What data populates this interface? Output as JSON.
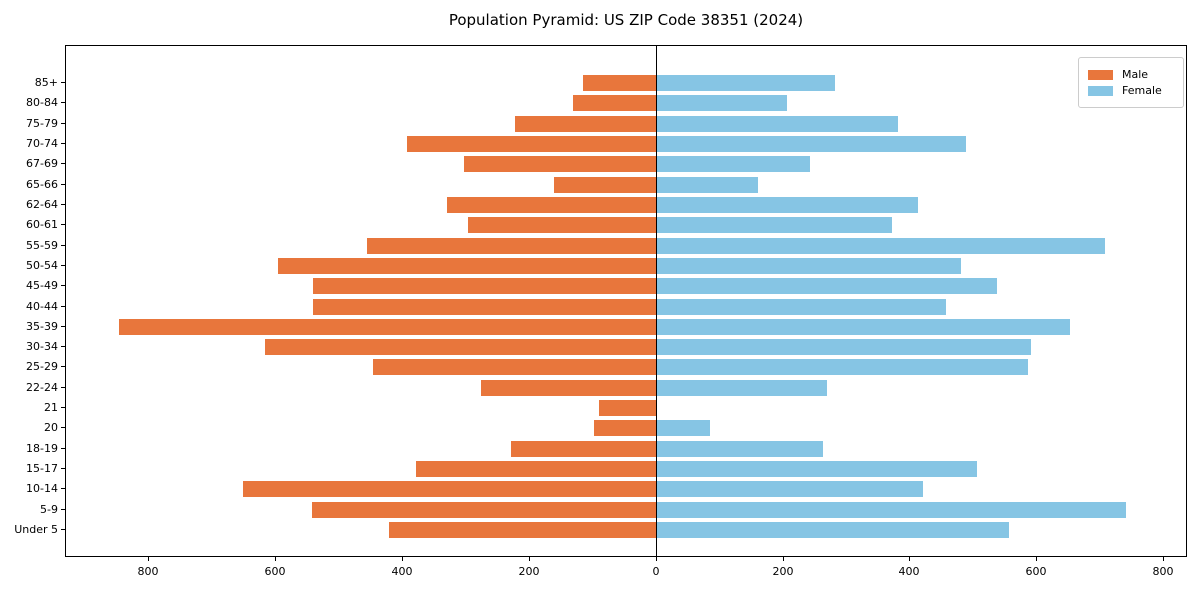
{
  "title": "Population Pyramid: US ZIP Code 38351 (2024)",
  "legend": {
    "items": [
      {
        "label": "Male",
        "color": "#e8763c"
      },
      {
        "label": "Female",
        "color": "#86c5e4"
      }
    ]
  },
  "chart_data": {
    "type": "bar",
    "subtype": "population-pyramid",
    "title": "Population Pyramid: US ZIP Code 38351 (2024)",
    "xlabel": "",
    "ylabel": "",
    "grid": false,
    "legend_position": "upper-right",
    "categories_top_to_bottom": [
      "85+",
      "80-84",
      "75-79",
      "70-74",
      "67-69",
      "65-66",
      "62-64",
      "60-61",
      "55-59",
      "50-54",
      "45-49",
      "40-44",
      "35-39",
      "30-34",
      "25-29",
      "22-24",
      "21",
      "20",
      "18-19",
      "15-17",
      "10-14",
      "5-9",
      "Under 5"
    ],
    "series": [
      {
        "name": "Male",
        "side": "left",
        "color": "#e8763c",
        "values": [
          115,
          130,
          222,
          392,
          303,
          161,
          330,
          296,
          455,
          596,
          541,
          541,
          847,
          616,
          446,
          275,
          89,
          98,
          228,
          378,
          651,
          542,
          420
        ]
      },
      {
        "name": "Female",
        "side": "right",
        "color": "#86c5e4",
        "values": [
          281,
          205,
          380,
          487,
          241,
          160,
          412,
          371,
          706,
          480,
          536,
          456,
          652,
          590,
          586,
          268,
          0,
          84,
          262,
          505,
          420,
          740,
          556
        ]
      }
    ],
    "x_tick_values": [
      -800,
      -600,
      -400,
      -200,
      0,
      200,
      400,
      600,
      800
    ],
    "x_tick_labels": [
      "800",
      "600",
      "400",
      "200",
      "0",
      "200",
      "400",
      "600",
      "800"
    ],
    "xlim": [
      -930,
      836
    ]
  }
}
